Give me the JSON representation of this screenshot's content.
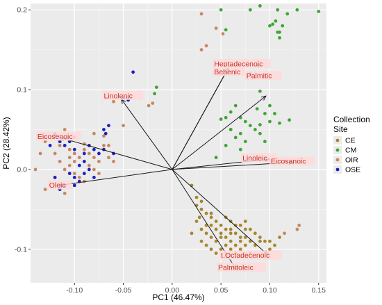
{
  "chart_data": {
    "type": "scatter",
    "title": "",
    "xlabel": "PC1 (46.47%)",
    "ylabel": "PC2 (28.42%)",
    "xlim": [
      -0.145,
      0.158
    ],
    "ylim": [
      -0.142,
      0.208
    ],
    "xticks": [
      -0.1,
      -0.05,
      0.0,
      0.05,
      0.1,
      0.15
    ],
    "xtick_labels": [
      "-0.10",
      "-0.05",
      "0.00",
      "0.05",
      "0.10",
      "0.15"
    ],
    "yticks": [
      -0.1,
      0.0,
      0.1,
      0.2
    ],
    "ytick_labels": [
      "-0.1",
      "0.0",
      "0.1",
      "0.2"
    ],
    "grid": true,
    "background": "#ebebeb",
    "legend": {
      "title": "Collection\nSite",
      "placement": "right",
      "entries": [
        {
          "label": "CE",
          "color": "#a8862e"
        },
        {
          "label": "CM",
          "color": "#3fa535"
        },
        {
          "label": "OIR",
          "color": "#c9875e"
        },
        {
          "label": "OSE",
          "color": "#1f1fbf"
        }
      ]
    },
    "loadings": [
      {
        "label": "Heptadecenoic",
        "x": 0.058,
        "y": 0.128,
        "label_x": 0.043,
        "label_y": 0.131
      },
      {
        "label": "Behenic",
        "x": 0.056,
        "y": 0.124,
        "label_x": 0.043,
        "label_y": 0.121
      },
      {
        "label": "Palmitic",
        "x": 0.096,
        "y": 0.092,
        "label_x": 0.076,
        "label_y": 0.116
      },
      {
        "label": "Linolenic",
        "x": -0.052,
        "y": 0.088,
        "label_x": -0.07,
        "label_y": 0.091
      },
      {
        "label": "Eicosenoic",
        "x": -0.115,
        "y": 0.04,
        "label_x": -0.138,
        "label_y": 0.04
      },
      {
        "label": "Oleic",
        "x": -0.116,
        "y": -0.02,
        "label_x": -0.126,
        "label_y": -0.021
      },
      {
        "label": "Linoleic",
        "x": 0.1,
        "y": 0.013,
        "label_x": 0.072,
        "label_y": 0.013
      },
      {
        "label": "Eicosanoic",
        "x": 0.124,
        "y": 0.009,
        "label_x": 0.101,
        "label_y": 0.009
      },
      {
        "label": "t.Octadecenoic",
        "x": 0.098,
        "y": -0.107,
        "label_x": 0.05,
        "label_y": -0.109
      },
      {
        "label": "Palmitoleic",
        "x": 0.066,
        "y": -0.126,
        "label_x": 0.047,
        "label_y": -0.124
      }
    ],
    "series": [
      {
        "name": "CE",
        "color": "#a8862e",
        "points": [
          [
            0.02,
            -0.02
          ],
          [
            0.025,
            -0.035
          ],
          [
            0.03,
            -0.05
          ],
          [
            0.028,
            -0.06
          ],
          [
            0.04,
            -0.055
          ],
          [
            0.035,
            -0.07
          ],
          [
            0.045,
            -0.065
          ],
          [
            0.05,
            -0.07
          ],
          [
            0.055,
            -0.06
          ],
          [
            0.06,
            -0.075
          ],
          [
            0.065,
            -0.08
          ],
          [
            0.07,
            -0.07
          ],
          [
            0.075,
            -0.085
          ],
          [
            0.08,
            -0.09
          ],
          [
            0.05,
            -0.08
          ],
          [
            0.045,
            -0.09
          ],
          [
            0.04,
            -0.085
          ],
          [
            0.035,
            -0.08
          ],
          [
            0.03,
            -0.09
          ],
          [
            0.055,
            -0.095
          ],
          [
            0.06,
            -0.1
          ],
          [
            0.065,
            -0.105
          ],
          [
            0.07,
            -0.1
          ],
          [
            0.075,
            -0.095
          ],
          [
            0.08,
            -0.075
          ],
          [
            0.085,
            -0.08
          ],
          [
            0.09,
            -0.09
          ],
          [
            0.1,
            -0.1
          ],
          [
            0.11,
            -0.085
          ],
          [
            0.05,
            -0.1
          ],
          [
            0.045,
            -0.105
          ],
          [
            0.04,
            -0.1
          ],
          [
            0.06,
            -0.065
          ],
          [
            0.065,
            -0.07
          ],
          [
            0.07,
            -0.085
          ],
          [
            0.075,
            -0.075
          ],
          [
            0.025,
            -0.045
          ],
          [
            0.03,
            -0.04
          ],
          [
            0.035,
            -0.055
          ],
          [
            0.04,
            -0.06
          ],
          [
            0.055,
            -0.085
          ],
          [
            0.06,
            -0.09
          ],
          [
            0.065,
            -0.095
          ],
          [
            0.045,
            -0.075
          ],
          [
            0.05,
            -0.085
          ],
          [
            0.055,
            -0.075
          ],
          [
            0.085,
            -0.095
          ],
          [
            0.09,
            -0.085
          ],
          [
            0.095,
            -0.09
          ],
          [
            0.08,
            -0.105
          ],
          [
            0.035,
            -0.095
          ],
          [
            0.04,
            -0.07
          ],
          [
            0.06,
            -0.08
          ],
          [
            0.07,
            -0.09
          ],
          [
            0.075,
            -0.065
          ],
          [
            0.03,
            -0.075
          ],
          [
            0.025,
            -0.065
          ],
          [
            0.02,
            -0.08
          ],
          [
            0.1,
            -0.09
          ],
          [
            0.105,
            -0.095
          ]
        ]
      },
      {
        "name": "CM",
        "color": "#3fa535",
        "points": [
          [
            0.15,
            0.198
          ],
          [
            0.128,
            0.2
          ],
          [
            0.118,
            0.195
          ],
          [
            0.108,
            0.2
          ],
          [
            0.113,
            0.18
          ],
          [
            0.106,
            0.186
          ],
          [
            0.11,
            0.172
          ],
          [
            0.1,
            0.18
          ],
          [
            0.09,
            0.205
          ],
          [
            0.08,
            0.2
          ],
          [
            0.11,
            0.165
          ],
          [
            0.108,
            0.172
          ],
          [
            0.103,
            0.182
          ],
          [
            0.05,
            0.2
          ],
          [
            0.055,
            0.175
          ],
          [
            0.1,
            0.08
          ],
          [
            0.095,
            0.07
          ],
          [
            0.087,
            0.076
          ],
          [
            0.065,
            0.08
          ],
          [
            0.06,
            0.072
          ],
          [
            0.055,
            0.065
          ],
          [
            0.05,
            0.063
          ],
          [
            0.07,
            0.065
          ],
          [
            0.075,
            0.06
          ],
          [
            0.08,
            0.055
          ],
          [
            0.085,
            0.05
          ],
          [
            0.09,
            0.056
          ],
          [
            0.1,
            0.06
          ],
          [
            0.105,
            0.07
          ],
          [
            0.11,
            0.058
          ],
          [
            0.12,
            0.062
          ],
          [
            0.09,
            0.045
          ],
          [
            0.095,
            0.035
          ],
          [
            0.07,
            0.045
          ],
          [
            0.065,
            0.04
          ],
          [
            0.06,
            0.05
          ],
          [
            0.055,
            0.03
          ],
          [
            0.045,
            0.015
          ],
          [
            0.07,
            0.025
          ],
          [
            0.075,
            0.035
          ],
          [
            0.09,
            0.098
          ],
          [
            0.088,
            0.13
          ],
          [
            0.08,
            0.12
          ],
          [
            0.06,
            0.05
          ],
          [
            -0.016,
            0.103
          ],
          [
            -0.018,
            0.095
          ]
        ]
      },
      {
        "name": "OIR",
        "color": "#c9875e",
        "points": [
          [
            0.035,
            0.155
          ],
          [
            0.03,
            0.15
          ],
          [
            0.045,
            0.177
          ],
          [
            0.052,
            0.17
          ],
          [
            0.03,
            0.195
          ],
          [
            -0.024,
            0.08
          ],
          [
            -0.02,
            0.083
          ],
          [
            -0.046,
            0.09
          ],
          [
            -0.06,
            0.085
          ],
          [
            -0.08,
            0.045
          ],
          [
            -0.1,
            0.04
          ],
          [
            -0.11,
            0.05
          ],
          [
            -0.12,
            0.045
          ],
          [
            -0.13,
            0.04
          ],
          [
            -0.13,
            0.035
          ],
          [
            -0.115,
            0.03
          ],
          [
            -0.105,
            0.025
          ],
          [
            -0.1,
            0.02
          ],
          [
            -0.09,
            0.025
          ],
          [
            -0.085,
            0.02
          ],
          [
            -0.08,
            0.015
          ],
          [
            -0.075,
            0.01
          ],
          [
            -0.07,
            0.03
          ],
          [
            -0.065,
            0.015
          ],
          [
            -0.1,
            0.01
          ],
          [
            -0.105,
            0.005
          ],
          [
            -0.11,
            0.0
          ],
          [
            -0.1,
            -0.005
          ],
          [
            -0.095,
            -0.01
          ],
          [
            -0.09,
            -0.015
          ],
          [
            -0.085,
            0.005
          ],
          [
            -0.08,
            0.0
          ],
          [
            -0.075,
            -0.005
          ],
          [
            -0.12,
            -0.01
          ],
          [
            -0.115,
            -0.02
          ],
          [
            -0.13,
            -0.025
          ],
          [
            -0.14,
            0.0
          ],
          [
            -0.135,
            0.02
          ],
          [
            -0.09,
            0.032
          ],
          [
            -0.095,
            0.015
          ],
          [
            -0.105,
            0.015
          ],
          [
            -0.115,
            0.01
          ],
          [
            -0.12,
            0.02
          ],
          [
            -0.065,
            0.03
          ],
          [
            0.13,
            -0.07
          ],
          [
            0.128,
            -0.075
          ],
          [
            0.115,
            -0.08
          ],
          [
            -0.05,
            0.055
          ],
          [
            -0.06,
            0.01
          ],
          [
            -0.11,
            -0.03
          ],
          [
            -0.07,
            0.042
          ]
        ]
      },
      {
        "name": "OSE",
        "color": "#1f1fbf",
        "points": [
          [
            -0.04,
            0.122
          ],
          [
            -0.05,
            0.09
          ],
          [
            -0.045,
            0.087
          ],
          [
            -0.065,
            0.055
          ],
          [
            -0.068,
            0.045
          ],
          [
            -0.07,
            0.05
          ],
          [
            -0.12,
            0.043
          ],
          [
            -0.115,
            0.035
          ],
          [
            -0.11,
            0.03
          ],
          [
            -0.125,
            0.03
          ],
          [
            -0.1,
            0.025
          ],
          [
            -0.095,
            0.005
          ],
          [
            -0.09,
            0.01
          ],
          [
            -0.085,
            0.0
          ],
          [
            -0.1,
            -0.01
          ],
          [
            -0.095,
            -0.015
          ],
          [
            -0.105,
            -0.005
          ],
          [
            -0.11,
            -0.02
          ],
          [
            -0.12,
            -0.01
          ],
          [
            -0.115,
            -0.025
          ],
          [
            -0.09,
            -0.005
          ],
          [
            -0.08,
            -0.01
          ],
          [
            -0.075,
            0.02
          ],
          [
            -0.07,
            0.025
          ],
          [
            -0.08,
            0.025
          ],
          [
            -0.085,
            0.03
          ],
          [
            -0.06,
            0.02
          ],
          [
            -0.105,
            0.035
          ],
          [
            -0.09,
            0.02
          ],
          [
            -0.1,
            -0.02
          ]
        ]
      }
    ]
  }
}
